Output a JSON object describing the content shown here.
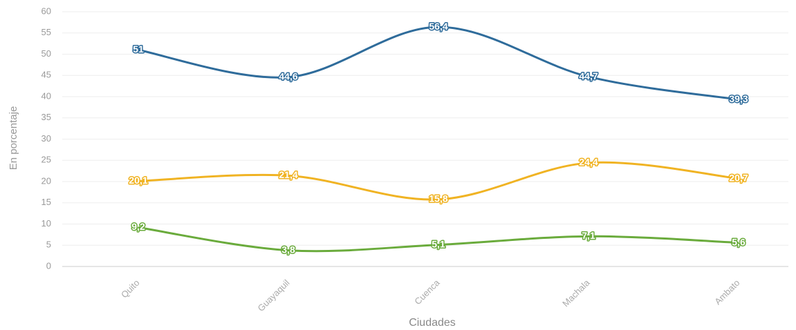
{
  "chart_data": {
    "type": "line",
    "x_label": "Ciudades",
    "y_label": "En porcentaje",
    "categories": [
      "Quito",
      "Guayaquil",
      "Cuenca",
      "Machala",
      "Ambato"
    ],
    "series": [
      {
        "color": "#2f6c9b",
        "values": [
          51,
          44.6,
          56.4,
          44.7,
          39.3
        ],
        "value_labels": [
          "51",
          "44,6",
          "56,4",
          "44,7",
          "39,3"
        ]
      },
      {
        "color": "#f0b323",
        "values": [
          20.1,
          21.4,
          15.8,
          24.4,
          20.7
        ],
        "value_labels": [
          "20,1",
          "21,4",
          "15,8",
          "24,4",
          "20,7"
        ]
      },
      {
        "color": "#6aab3c",
        "values": [
          9.2,
          3.8,
          5.1,
          7.1,
          5.6
        ],
        "value_labels": [
          "9,2",
          "3,8",
          "5,1",
          "7,1",
          "5,6"
        ]
      }
    ],
    "ylim": [
      0,
      60
    ],
    "yticks": [
      0,
      5,
      10,
      15,
      20,
      25,
      30,
      35,
      40,
      45,
      50,
      55,
      60
    ],
    "grid": true
  }
}
